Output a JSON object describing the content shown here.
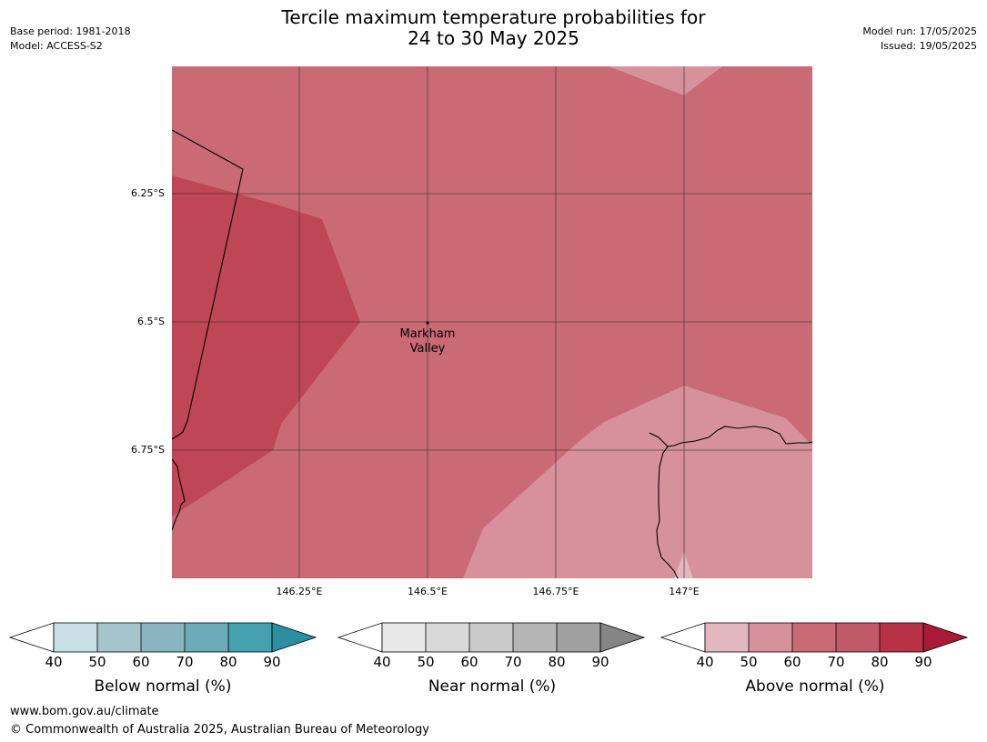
{
  "header": {
    "title_line1": "Tercile maximum temperature probabilities for",
    "title_line2": "24 to 30 May 2025",
    "base_period": "Base period: 1981-2018",
    "model": "Model: ACCESS-S2",
    "model_run": "Model run: 17/05/2025",
    "issued": "Issued: 19/05/2025"
  },
  "map": {
    "lat_labels": [
      "6.25°S",
      "6.5°S",
      "6.75°S"
    ],
    "lon_labels": [
      "146.25°E",
      "146.5°E",
      "146.75°E",
      "147°E"
    ],
    "place": {
      "line1": "Markham",
      "line2": "Valley"
    },
    "colors": {
      "above_60_70": "#c96a74",
      "above_70_80": "#be4655",
      "above_50_60": "#d6919a",
      "above_40_50": "#e2b7bd",
      "coastline": "#000000",
      "grid": "#333333"
    }
  },
  "legends": [
    {
      "caption": "Below normal (%)",
      "ticks": [
        "40",
        "50",
        "60",
        "70",
        "80",
        "90"
      ],
      "colors": [
        "#c8e1e6",
        "#a6c5cb",
        "#88b5c0",
        "#6cacba",
        "#46a1af",
        "#2a8f9f"
      ]
    },
    {
      "caption": "Near normal (%)",
      "ticks": [
        "40",
        "50",
        "60",
        "70",
        "80",
        "90"
      ],
      "colors": [
        "#e8e8e8",
        "#d9d9d9",
        "#c9c9c9",
        "#b5b5b5",
        "#a0a0a0",
        "#858585"
      ]
    },
    {
      "caption": "Above normal (%)",
      "ticks": [
        "40",
        "50",
        "60",
        "70",
        "80",
        "90"
      ],
      "colors": [
        "#e2b7bd",
        "#d6919a",
        "#c96a74",
        "#c05a66",
        "#b83245",
        "#a81a36"
      ]
    }
  ],
  "footer": {
    "url": "www.bom.gov.au/climate",
    "copyright": "© Commonwealth of Australia 2025, Australian Bureau of Meteorology"
  }
}
